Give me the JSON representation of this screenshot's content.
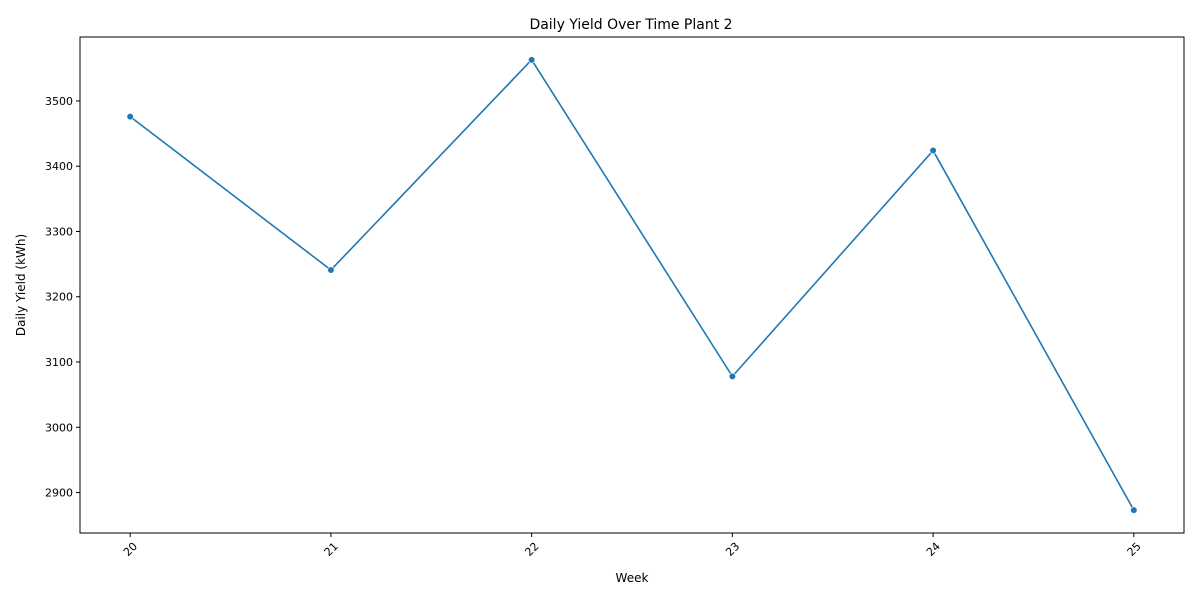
{
  "chart_data": {
    "type": "line",
    "title": "Daily Yield Over Time Plant 2",
    "xlabel": "Week",
    "ylabel": "Daily Yield (kWh)",
    "x": [
      20,
      21,
      22,
      23,
      24,
      25
    ],
    "x_tick_labels": [
      "20",
      "21",
      "22",
      "23",
      "24",
      "25"
    ],
    "x_tick_rotation_deg": 45,
    "y_ticks": [
      2900,
      3000,
      3100,
      3200,
      3300,
      3400,
      3500
    ],
    "y_tick_labels": [
      "2900",
      "3000",
      "3100",
      "3200",
      "3300",
      "3400",
      "3500"
    ],
    "ylim": [
      2838,
      3598
    ],
    "xlim": [
      19.75,
      25.25
    ],
    "grid": false,
    "legend": "none",
    "series": [
      {
        "values": [
          3476,
          3241,
          3563,
          3078,
          3424,
          2873
        ],
        "color": "#1f77b4",
        "marker": "circle"
      }
    ]
  }
}
